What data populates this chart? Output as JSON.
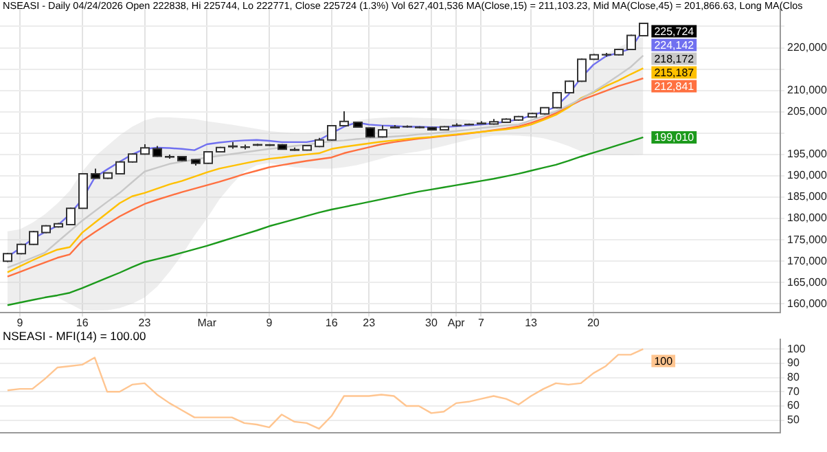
{
  "chart_data": [
    {
      "type": "candlestick",
      "title": "NSEASI - Daily 04/24/2026 Open 222838, Hi 225744, Lo 222771, Close 225724 (1.3%) Vol 627,401,536 MA(Close,15) = 211,103.23, Mid MA(Close,45) = 201,866.63, Long MA(Clos",
      "categories": [
        null,
        "9",
        null,
        null,
        null,
        null,
        "16",
        null,
        null,
        null,
        null,
        "23",
        null,
        null,
        null,
        null,
        "Mar",
        null,
        null,
        null,
        null,
        "9",
        null,
        null,
        null,
        null,
        "16",
        null,
        null,
        "23",
        null,
        null,
        null,
        null,
        "30",
        null,
        "Apr",
        null,
        "7",
        null,
        null,
        null,
        "13",
        null,
        null,
        null,
        null,
        "20",
        null,
        null,
        null,
        null
      ],
      "ohlc": [
        [
          169990,
          171960,
          169790,
          171760
        ],
        [
          171760,
          174100,
          171600,
          173930
        ],
        [
          173930,
          177100,
          173800,
          176930
        ],
        [
          176720,
          178450,
          176550,
          178270
        ],
        [
          178060,
          178950,
          177900,
          178780
        ],
        [
          178580,
          182550,
          178400,
          182400
        ],
        [
          182400,
          190600,
          182250,
          190460
        ],
        [
          190460,
          191700,
          189300,
          189420
        ],
        [
          189420,
          190800,
          189250,
          190660
        ],
        [
          190460,
          193400,
          190300,
          193250
        ],
        [
          193250,
          195250,
          193100,
          195100
        ],
        [
          195100,
          197400,
          194950,
          196550
        ],
        [
          196340,
          197000,
          194450,
          194590
        ],
        [
          194500,
          195000,
          194000,
          194400
        ],
        [
          194480,
          194650,
          193400,
          193560
        ],
        [
          193760,
          193900,
          192400,
          192940
        ],
        [
          192940,
          195780,
          192800,
          195620
        ],
        [
          195620,
          196800,
          195480,
          196650
        ],
        [
          196820,
          197900,
          196330,
          196960
        ],
        [
          196700,
          197300,
          196200,
          196750
        ],
        [
          197200,
          197500,
          197000,
          197300
        ],
        [
          197250,
          197450,
          197000,
          197150
        ],
        [
          197260,
          197450,
          196100,
          196240
        ],
        [
          196140,
          196650,
          195850,
          196000
        ],
        [
          196030,
          197250,
          195900,
          197070
        ],
        [
          196860,
          198900,
          196700,
          198410
        ],
        [
          198410,
          201900,
          198250,
          201720
        ],
        [
          201720,
          205130,
          201600,
          202750
        ],
        [
          202540,
          202700,
          201250,
          201410
        ],
        [
          201200,
          201350,
          198950,
          199130
        ],
        [
          199130,
          201820,
          198950,
          200790
        ],
        [
          201270,
          201900,
          201100,
          201400
        ],
        [
          201500,
          201800,
          201300,
          201520
        ],
        [
          201400,
          201600,
          201150,
          201300
        ],
        [
          201300,
          201450,
          200650,
          200790
        ],
        [
          200790,
          201650,
          200600,
          201500
        ],
        [
          201780,
          202300,
          201600,
          201820
        ],
        [
          202000,
          202250,
          201850,
          202050
        ],
        [
          202200,
          202800,
          202050,
          202320
        ],
        [
          202130,
          203300,
          202000,
          202650
        ],
        [
          202540,
          203450,
          202400,
          203270
        ],
        [
          203060,
          204050,
          202900,
          203890
        ],
        [
          203780,
          204800,
          203650,
          204610
        ],
        [
          204510,
          206100,
          204350,
          205950
        ],
        [
          205950,
          209650,
          205800,
          209460
        ],
        [
          209460,
          212300,
          209300,
          212150
        ],
        [
          212150,
          217500,
          212000,
          217310
        ],
        [
          217310,
          218550,
          217150,
          218350
        ],
        [
          218350,
          218800,
          217900,
          218400
        ],
        [
          218350,
          219750,
          218200,
          219590
        ],
        [
          219590,
          223050,
          219450,
          222890
        ],
        [
          222838,
          225744,
          222771,
          225724
        ]
      ],
      "series": [
        {
          "type": "line",
          "color": "#c8c8c8",
          "values": [
            168500,
            169600,
            170800,
            172000,
            174500,
            177000,
            179500,
            181700,
            183900,
            186000,
            188500,
            191000,
            191900,
            192800,
            193300,
            193800,
            194300,
            194700,
            195100,
            195500,
            195900,
            196300,
            196600,
            197000,
            197300,
            197700,
            198100,
            198300,
            198600,
            198800,
            199000,
            199200,
            199400,
            199700,
            199900,
            200200,
            200500,
            200800,
            201200,
            201500,
            201800,
            202000,
            203000,
            204000,
            205100,
            206500,
            208000,
            209700,
            211500,
            213500,
            215500,
            218172
          ],
          "lower": [
            160000,
            160500,
            161000,
            161500,
            161500,
            160000,
            158500,
            158400,
            158500,
            159000,
            160000,
            161500,
            164000,
            167500,
            171500,
            176000,
            180000,
            184500,
            188000,
            191000,
            192500,
            193000,
            192500,
            192000,
            191800,
            191700,
            191700,
            192000,
            192500,
            193200,
            194000,
            194800,
            195300,
            195700,
            196300,
            197000,
            197700,
            198400,
            199000,
            199400,
            199500,
            199400,
            199200,
            198800,
            198000,
            197000,
            195800,
            195000,
            194800,
            194800,
            194800,
            195000
          ],
          "upper": [
            177000,
            177500,
            179000,
            181000,
            183500,
            186500,
            191000,
            194500,
            197000,
            199500,
            201500,
            203000,
            203700,
            203700,
            203500,
            203300,
            202800,
            202400,
            202000,
            201500,
            201000,
            200500,
            200200,
            200000,
            200000,
            200200,
            201000,
            202200,
            203000,
            203400,
            203600,
            203700,
            203700,
            203600,
            203500,
            203400,
            203300,
            203100,
            202900,
            202700,
            202600,
            202600,
            203000,
            204000,
            206000,
            209000,
            213000,
            216500,
            218500,
            220000,
            221500,
            222700
          ],
          "value_labels": [
            null,
            null,
            null,
            null,
            null,
            null,
            null,
            null,
            null,
            null,
            null,
            null,
            null,
            null,
            null,
            null,
            null,
            null,
            null,
            null,
            null,
            null,
            null,
            null,
            null,
            null,
            null,
            null,
            null,
            null,
            null,
            null,
            null,
            null,
            null,
            null,
            null,
            null,
            null,
            null,
            null,
            null,
            null,
            null,
            null,
            null,
            null,
            null,
            null,
            null,
            null,
            "218,172"
          ]
        },
        {
          "type": "line",
          "color": "#ffc000",
          "values": [
            167400,
            168800,
            170200,
            171500,
            172700,
            173300,
            176700,
            179000,
            181300,
            183600,
            185200,
            186000,
            187000,
            188000,
            188800,
            189800,
            190800,
            191700,
            192300,
            192900,
            193500,
            194000,
            194300,
            194700,
            195000,
            195300,
            196300,
            196800,
            197200,
            197600,
            198000,
            198300,
            198600,
            198900,
            199100,
            199400,
            199700,
            200000,
            200300,
            200600,
            200900,
            201300,
            202000,
            203100,
            204300,
            206000,
            208200,
            209500,
            211000,
            212300,
            213800,
            215187
          ],
          "value_labels": [
            null,
            null,
            null,
            null,
            null,
            null,
            null,
            null,
            null,
            null,
            null,
            null,
            null,
            null,
            null,
            null,
            null,
            null,
            null,
            null,
            null,
            null,
            null,
            null,
            null,
            null,
            null,
            null,
            null,
            null,
            null,
            null,
            null,
            null,
            null,
            null,
            null,
            null,
            null,
            null,
            null,
            null,
            null,
            null,
            null,
            null,
            null,
            null,
            null,
            null,
            null,
            "215,187"
          ]
        },
        {
          "type": "line",
          "color": "#ff7040",
          "values": [
            166400,
            167500,
            168600,
            169700,
            170800,
            171600,
            174800,
            176800,
            178700,
            180500,
            182000,
            183400,
            184400,
            185300,
            186200,
            187000,
            187800,
            188600,
            189500,
            190400,
            191200,
            192000,
            192500,
            193000,
            193500,
            193900,
            194300,
            195300,
            196000,
            196700,
            197400,
            197900,
            198300,
            198700,
            199000,
            199300,
            199600,
            199900,
            200300,
            200700,
            201100,
            201600,
            202400,
            203400,
            204700,
            206200,
            207700,
            208800,
            209900,
            211000,
            211900,
            212841
          ],
          "value_labels": [
            null,
            null,
            null,
            null,
            null,
            null,
            null,
            null,
            null,
            null,
            null,
            null,
            null,
            null,
            null,
            null,
            null,
            null,
            null,
            null,
            null,
            null,
            null,
            null,
            null,
            null,
            null,
            null,
            null,
            null,
            null,
            null,
            null,
            null,
            null,
            null,
            null,
            null,
            null,
            null,
            null,
            null,
            null,
            null,
            null,
            null,
            null,
            null,
            null,
            null,
            null,
            "212,841"
          ]
        },
        {
          "type": "line",
          "color": "#1c9a1c",
          "values": [
            159700,
            160300,
            160900,
            161500,
            162000,
            162600,
            163700,
            164900,
            166100,
            167300,
            168600,
            169800,
            170500,
            171200,
            172000,
            172800,
            173600,
            174500,
            175400,
            176300,
            177200,
            178200,
            179000,
            179800,
            180600,
            181400,
            182100,
            182700,
            183300,
            183900,
            184500,
            185100,
            185700,
            186300,
            186800,
            187300,
            187800,
            188300,
            188800,
            189300,
            189900,
            190500,
            191200,
            191900,
            192600,
            193500,
            194500,
            195400,
            196300,
            197200,
            198100,
            199010
          ],
          "value_labels": [
            null,
            null,
            null,
            null,
            null,
            null,
            null,
            null,
            null,
            null,
            null,
            null,
            null,
            null,
            null,
            null,
            null,
            null,
            null,
            null,
            null,
            null,
            null,
            null,
            null,
            null,
            null,
            null,
            null,
            null,
            null,
            null,
            null,
            null,
            null,
            null,
            null,
            null,
            null,
            null,
            null,
            null,
            null,
            null,
            null,
            null,
            null,
            null,
            null,
            null,
            null,
            "199,010"
          ]
        },
        {
          "type": "line",
          "color": "#7070f0",
          "values": [
            171000,
            173000,
            175200,
            176800,
            178300,
            181000,
            184500,
            189600,
            191500,
            193300,
            195000,
            196300,
            196600,
            196500,
            196300,
            196000,
            197400,
            197800,
            198100,
            198300,
            198400,
            198200,
            197900,
            197900,
            197900,
            198400,
            200000,
            201500,
            202500,
            202000,
            201800,
            201700,
            201500,
            201500,
            201400,
            201400,
            201600,
            201800,
            202000,
            202300,
            202700,
            203200,
            204100,
            205000,
            206200,
            209000,
            212900,
            216000,
            218000,
            218800,
            219800,
            224142
          ],
          "value_labels": [
            null,
            null,
            null,
            null,
            null,
            null,
            null,
            null,
            null,
            null,
            null,
            null,
            null,
            null,
            null,
            null,
            null,
            null,
            null,
            null,
            null,
            null,
            null,
            null,
            null,
            null,
            null,
            null,
            null,
            null,
            null,
            null,
            null,
            null,
            null,
            null,
            null,
            null,
            null,
            null,
            null,
            null,
            null,
            null,
            null,
            null,
            null,
            null,
            null,
            null,
            null,
            "224,142"
          ]
        }
      ],
      "annotations": [
        "225,724"
      ],
      "ylim": [
        158000,
        229000
      ],
      "yticks": [
        {
          "value": 160000,
          "label": "160,000"
        },
        {
          "value": 165000,
          "label": "165,000"
        },
        {
          "value": 170000,
          "label": "170,000"
        },
        {
          "value": 175000,
          "label": "175,000"
        },
        {
          "value": 180000,
          "label": "180,000"
        },
        {
          "value": 185000,
          "label": "185,000"
        },
        {
          "value": 190000,
          "label": "190,000"
        },
        {
          "value": 195000,
          "label": "195,000"
        },
        {
          "value": 200000,
          "label": null
        },
        {
          "value": 205000,
          "label": "205,000"
        },
        {
          "value": 210000,
          "label": "210,000"
        },
        {
          "value": 215000,
          "label": null
        },
        {
          "value": 220000,
          "label": "220,000"
        },
        {
          "value": 225000,
          "label": null
        }
      ],
      "grid": true
    },
    {
      "type": "line",
      "title": "NSEASI - MFI(14) = 100.00",
      "categories": [
        null,
        null,
        null,
        null,
        null,
        null,
        null,
        null,
        null,
        null,
        null,
        null,
        null,
        null,
        null,
        null,
        null,
        null,
        null,
        null,
        null,
        null,
        null,
        null,
        null,
        null,
        null,
        null,
        null,
        null,
        null,
        null,
        null,
        null,
        null,
        null,
        null,
        null,
        null,
        null,
        null,
        null,
        null,
        null,
        null,
        null,
        null,
        null,
        null,
        null,
        null,
        null
      ],
      "series": [
        {
          "color": "#ffc590",
          "values": [
            71,
            72,
            72,
            79,
            87,
            88,
            89,
            94,
            70,
            70,
            75,
            76,
            68,
            62,
            57,
            52,
            52,
            52,
            52,
            48,
            47,
            45,
            54,
            49,
            48,
            44,
            53,
            67,
            67,
            67,
            68,
            67,
            60,
            60,
            55,
            56,
            62,
            63,
            65,
            67,
            65,
            61,
            67,
            72,
            76,
            75,
            76,
            83,
            88,
            96,
            96,
            100
          ],
          "value_labels": [
            null,
            null,
            null,
            null,
            null,
            null,
            null,
            null,
            null,
            null,
            null,
            null,
            null,
            null,
            null,
            null,
            null,
            null,
            null,
            null,
            null,
            null,
            null,
            null,
            null,
            null,
            null,
            null,
            null,
            null,
            null,
            null,
            null,
            null,
            null,
            null,
            null,
            null,
            null,
            null,
            null,
            null,
            null,
            null,
            null,
            null,
            null,
            null,
            null,
            null,
            null,
            "100"
          ]
        }
      ],
      "ylim": [
        41,
        107
      ],
      "yticks": [
        50,
        60,
        70,
        80,
        90,
        100
      ],
      "grid": "y",
      "tick_labels": "y"
    }
  ]
}
